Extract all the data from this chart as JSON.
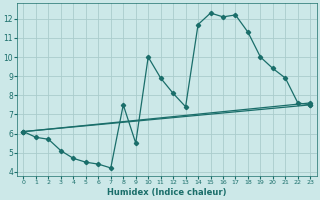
{
  "xlabel": "Humidex (Indice chaleur)",
  "ylabel": "",
  "bg_color": "#cce8e8",
  "grid_color": "#aacccc",
  "line_color": "#1a6e6a",
  "xlim": [
    -0.5,
    23.5
  ],
  "ylim": [
    3.8,
    12.8
  ],
  "yticks": [
    4,
    5,
    6,
    7,
    8,
    9,
    10,
    11,
    12
  ],
  "xticks": [
    0,
    1,
    2,
    3,
    4,
    5,
    6,
    7,
    8,
    9,
    10,
    11,
    12,
    13,
    14,
    15,
    16,
    17,
    18,
    19,
    20,
    21,
    22,
    23
  ],
  "series1_x": [
    0,
    1,
    2,
    3,
    4,
    5,
    6,
    7,
    8,
    9,
    10,
    11,
    12,
    13,
    14,
    15,
    16,
    17,
    18,
    19,
    20,
    21,
    22,
    23
  ],
  "series1_y": [
    6.1,
    5.8,
    5.7,
    5.1,
    4.7,
    4.5,
    4.4,
    4.2,
    7.5,
    5.5,
    10.0,
    8.9,
    8.1,
    7.4,
    11.7,
    12.3,
    12.1,
    12.2,
    11.3,
    10.0,
    9.4,
    8.9,
    7.6,
    7.5
  ],
  "series2_x": [
    0,
    23
  ],
  "series2_y": [
    6.1,
    7.6
  ],
  "series3_x": [
    0,
    23
  ],
  "series3_y": [
    6.1,
    7.5
  ]
}
